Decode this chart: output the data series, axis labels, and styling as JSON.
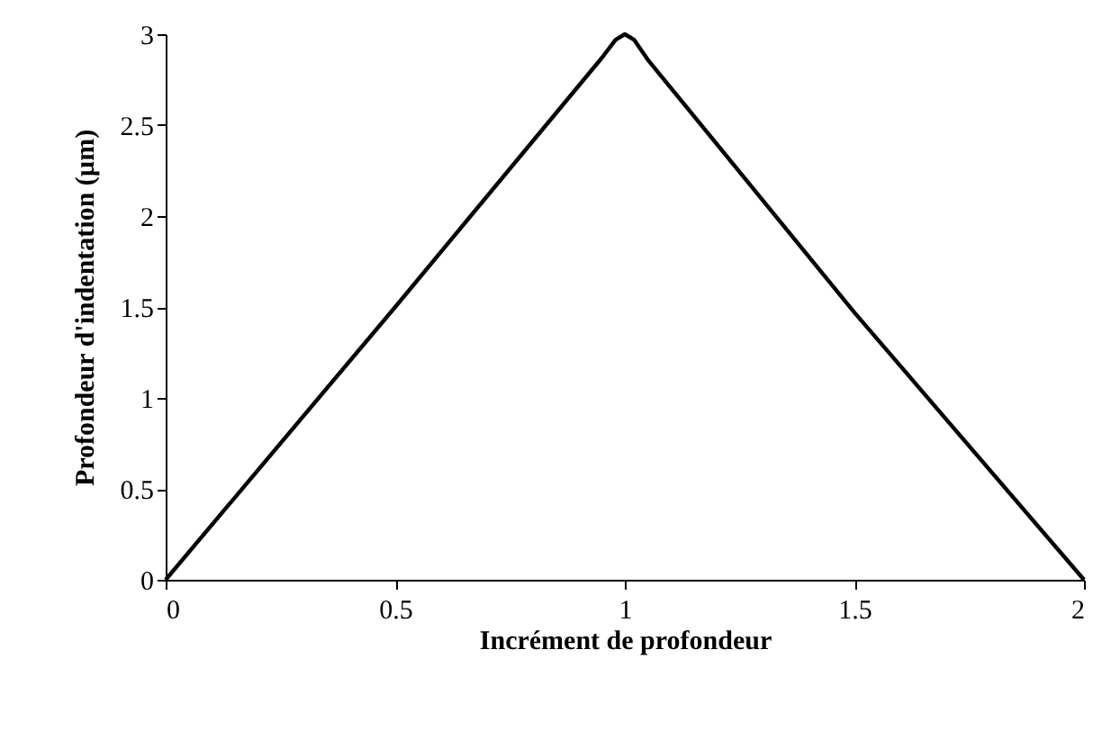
{
  "chart_data": {
    "type": "line",
    "xlabel": "Incrément de profondeur",
    "ylabel": "Profondeur d'indentation (µm)",
    "x": [
      0,
      0.5,
      0.95,
      0.98,
      1.0,
      1.02,
      1.05,
      1.5,
      2
    ],
    "series": [
      {
        "color": "#000000",
        "values": [
          0,
          1.5,
          2.87,
          2.97,
          3.0,
          2.97,
          2.86,
          1.47,
          0
        ]
      }
    ],
    "xlim": [
      0,
      2
    ],
    "xticks": [
      0,
      0.5,
      1,
      1.5,
      2
    ],
    "ylim": [
      0,
      3
    ],
    "yticks": [
      0,
      0.5,
      1,
      1.5,
      2,
      2.5,
      3
    ],
    "grid": false,
    "marker": "none",
    "line_style": "solid"
  }
}
